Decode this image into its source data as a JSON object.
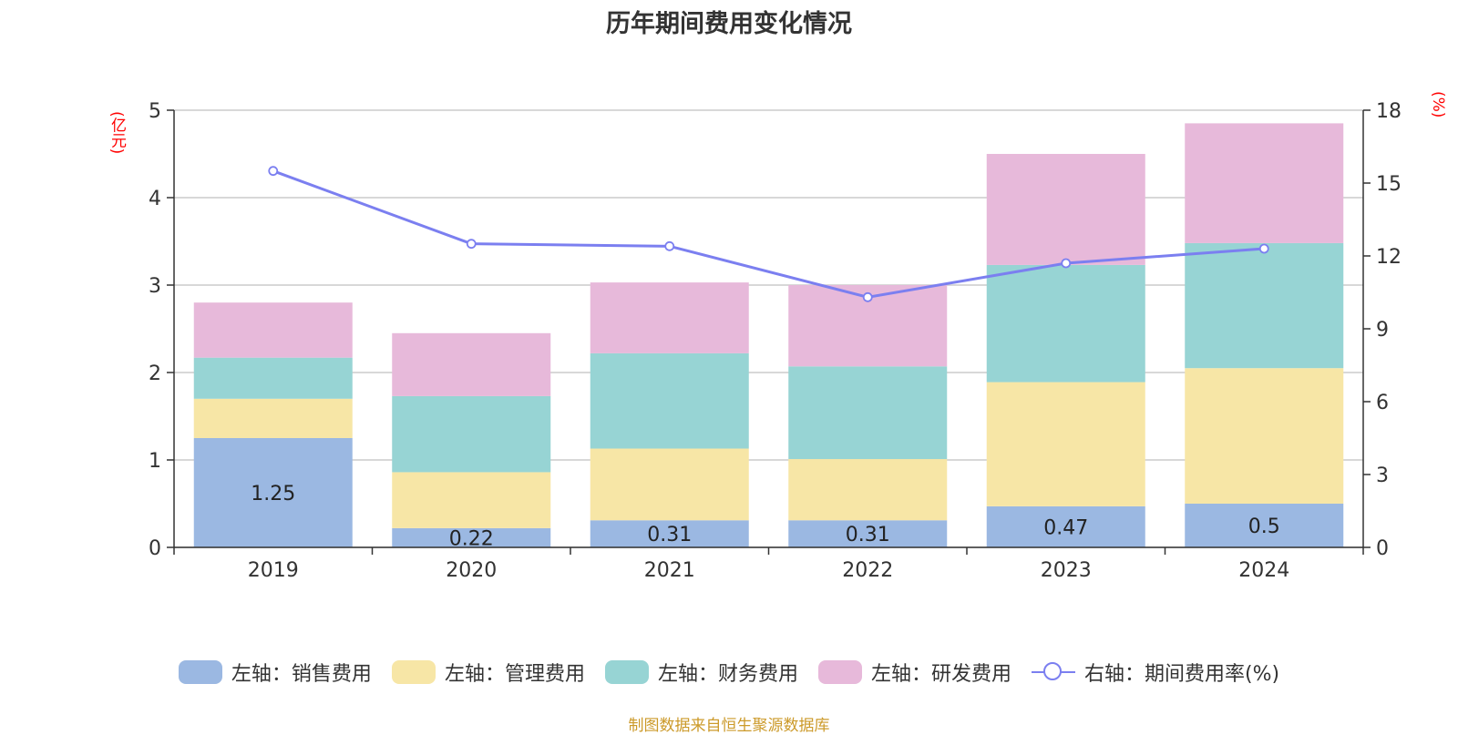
{
  "chart_data": {
    "type": "bar",
    "title": "历年期间费用变化情况",
    "y_left_unit": "(亿元)",
    "y_right_unit": "(%)",
    "categories": [
      "2019",
      "2020",
      "2021",
      "2022",
      "2023",
      "2024"
    ],
    "ylim_left": [
      0,
      5
    ],
    "ylim_right": [
      0,
      18
    ],
    "yticks_left": [
      "0",
      "1",
      "2",
      "3",
      "4",
      "5"
    ],
    "yticks_right": [
      "0",
      "3",
      "6",
      "9",
      "12",
      "15",
      "18"
    ],
    "grid": true,
    "series": [
      {
        "name": "左轴：销售费用",
        "axis": "left",
        "kind": "bar",
        "color": "#9bb8e2",
        "values": [
          1.25,
          0.22,
          0.31,
          0.31,
          0.47,
          0.5
        ],
        "labels": [
          "1.25",
          "0.22",
          "0.31",
          "0.31",
          "0.47",
          "0.5"
        ]
      },
      {
        "name": "左轴：管理费用",
        "axis": "left",
        "kind": "bar",
        "color": "#f7e6a6",
        "values": [
          0.45,
          0.64,
          0.82,
          0.7,
          1.42,
          1.55
        ]
      },
      {
        "name": "左轴：财务费用",
        "axis": "left",
        "kind": "bar",
        "color": "#97d4d4",
        "values": [
          0.47,
          0.87,
          1.09,
          1.06,
          1.34,
          1.43
        ]
      },
      {
        "name": "左轴：研发费用",
        "axis": "left",
        "kind": "bar",
        "color": "#e7b9da",
        "values": [
          0.63,
          0.72,
          0.81,
          0.93,
          1.27,
          1.37
        ]
      },
      {
        "name": "右轴：期间费用率(%)",
        "axis": "right",
        "kind": "line",
        "color": "#7b7ff0",
        "values": [
          15.5,
          12.5,
          12.4,
          10.3,
          11.7,
          12.3
        ]
      }
    ],
    "legend_position": "bottom"
  },
  "source_note": "制图数据来自恒生聚源数据库"
}
